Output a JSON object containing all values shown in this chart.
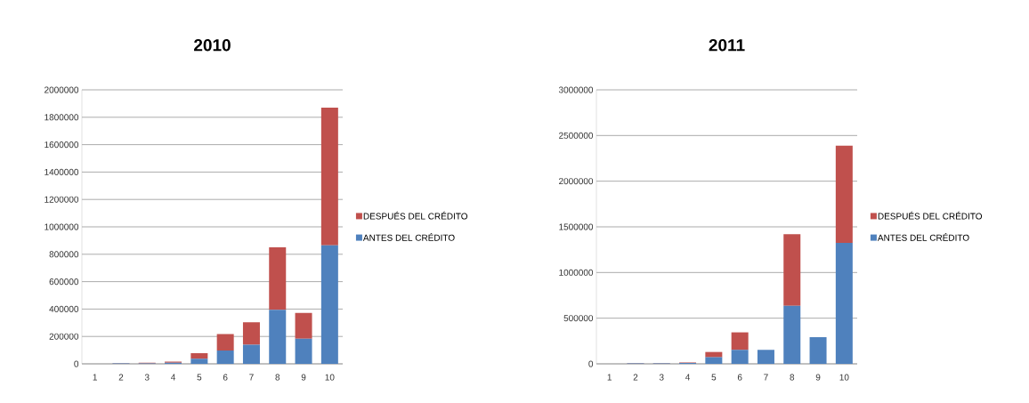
{
  "chart_data": [
    {
      "type": "bar",
      "title": "2010",
      "categories": [
        "1",
        "2",
        "3",
        "4",
        "5",
        "6",
        "7",
        "8",
        "9",
        "10"
      ],
      "stacked": true,
      "grid": "y",
      "legend": "right",
      "ylim": [
        0,
        2000000
      ],
      "yticks": [
        0,
        200000,
        400000,
        600000,
        800000,
        1000000,
        1200000,
        1400000,
        1600000,
        1800000,
        2000000
      ],
      "series": [
        {
          "name": "ANTES DEL CRÉDITO",
          "color": "#4f81bd",
          "values": [
            0,
            3000,
            4000,
            8000,
            37000,
            98000,
            139000,
            395000,
            184000,
            866000
          ]
        },
        {
          "name": "DESPUÉS DEL CRÉDITO",
          "color": "#c0504d",
          "values": [
            0,
            2000,
            4000,
            8000,
            41000,
            119000,
            165000,
            455000,
            187000,
            1004000
          ]
        }
      ]
    },
    {
      "type": "bar",
      "title": "2011",
      "categories": [
        "1",
        "2",
        "3",
        "4",
        "5",
        "6",
        "7",
        "8",
        "9",
        "10"
      ],
      "stacked": true,
      "grid": "y",
      "legend": "right",
      "ylim": [
        0,
        3000000
      ],
      "yticks": [
        0,
        500000,
        1000000,
        1500000,
        2000000,
        2500000,
        3000000
      ],
      "series": [
        {
          "name": "ANTES DEL CRÉDITO",
          "color": "#4f81bd",
          "values": [
            0,
            5000,
            5000,
            9000,
            72000,
            153000,
            153000,
            635000,
            293000,
            1325000
          ]
        },
        {
          "name": "DESPUÉS DEL CRÉDITO",
          "color": "#c0504d",
          "values": [
            0,
            3000,
            3000,
            6000,
            58000,
            192000,
            0,
            785000,
            0,
            1065000
          ]
        }
      ]
    }
  ]
}
